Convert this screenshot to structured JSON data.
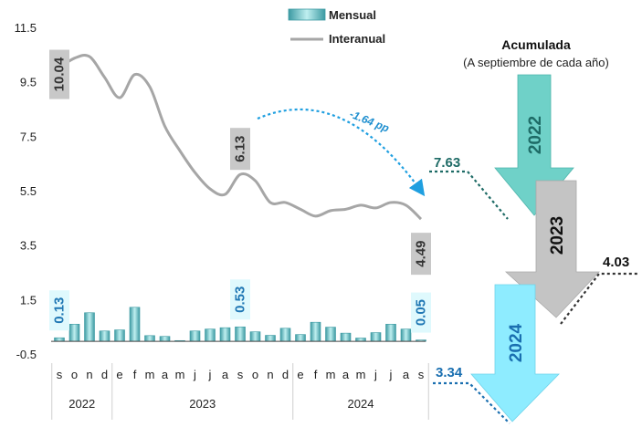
{
  "chart_data": {
    "type": "bar+line",
    "legend": {
      "mensual": "Mensual",
      "interanual": "Interanual",
      "placement": "top-center"
    },
    "y_ticks": [
      "11.5",
      "9.5",
      "7.5",
      "5.5",
      "3.5",
      "1.5",
      "-0.5"
    ],
    "ylim": [
      -0.5,
      11.5
    ],
    "month_labels": [
      "s",
      "o",
      "n",
      "d",
      "e",
      "f",
      "m",
      "a",
      "m",
      "j",
      "j",
      "a",
      "s",
      "o",
      "n",
      "d",
      "e",
      "f",
      "m",
      "a",
      "m",
      "j",
      "j",
      "a",
      "s"
    ],
    "years": [
      {
        "label": "2022",
        "start": 0,
        "end": 3
      },
      {
        "label": "2023",
        "start": 4,
        "end": 15
      },
      {
        "label": "2024",
        "start": 16,
        "end": 24
      }
    ],
    "mensual": [
      0.13,
      0.63,
      1.05,
      0.38,
      0.42,
      1.25,
      0.21,
      0.18,
      0.0,
      0.38,
      0.45,
      0.5,
      0.53,
      0.35,
      0.22,
      0.48,
      0.25,
      0.7,
      0.52,
      0.3,
      0.12,
      0.32,
      0.63,
      0.45,
      0.05
    ],
    "interanual": [
      10.04,
      10.4,
      10.46,
      9.7,
      8.95,
      9.8,
      9.35,
      7.9,
      7.0,
      6.2,
      5.6,
      5.4,
      6.13,
      5.9,
      5.1,
      5.1,
      4.85,
      4.6,
      4.8,
      4.85,
      5.0,
      4.9,
      5.1,
      5.0,
      4.49
    ],
    "interanual_labels": [
      {
        "index": 0,
        "text": "10.04"
      },
      {
        "index": 12,
        "text": "6.13"
      },
      {
        "index": 24,
        "text": "4.49"
      }
    ],
    "mensual_labels": [
      {
        "index": 0,
        "text": "0.13"
      },
      {
        "index": 12,
        "text": "0.53"
      },
      {
        "index": 24,
        "text": "0.05"
      }
    ],
    "annotation": "-1.64 pp",
    "acumulada": {
      "title": "Acumulada",
      "subtitle": "(A septiembre de cada año)",
      "items": [
        {
          "year": "2022",
          "value": "7.63",
          "color": "#6fd1c8",
          "text_color": "#1e6b66"
        },
        {
          "year": "2023",
          "value": "4.03",
          "color": "#c4c4c4",
          "text_color": "#111111"
        },
        {
          "year": "2024",
          "value": "3.34",
          "color": "#8eecff",
          "text_color": "#1a6fb0"
        }
      ]
    },
    "colors": {
      "bar_light": "#bfeff0",
      "bar_mid": "#6fc3c7",
      "bar_dark": "#3c9aa2",
      "line": "#a6a6a6",
      "annotation_arrow": "#1f9fe0",
      "gray_box": "#c8c8c8",
      "blue_box": "#dff9fd"
    }
  }
}
